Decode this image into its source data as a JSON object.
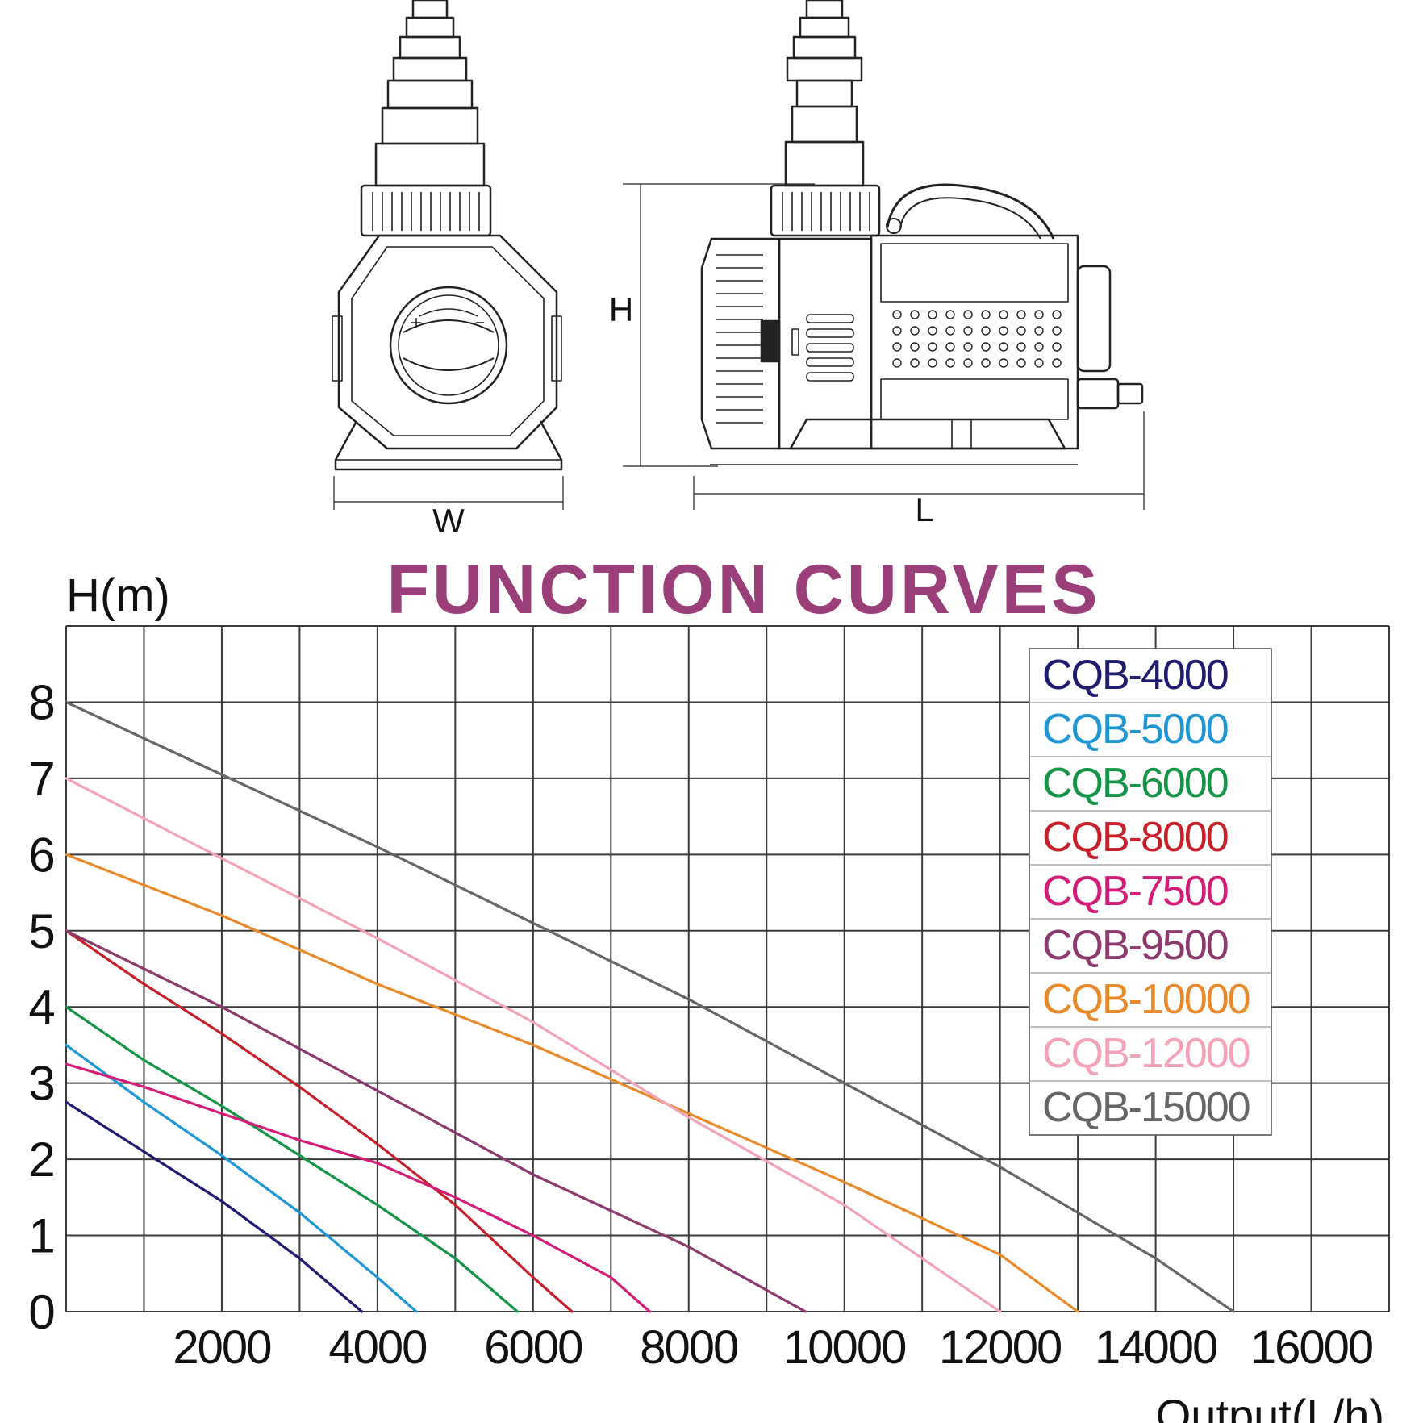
{
  "drawing": {
    "front_view_label": "W",
    "side_view_label": "L",
    "height_label": "H"
  },
  "chart_data": {
    "type": "line",
    "title": "FUNCTION CURVES",
    "title_color": "#9b3f7a",
    "xlabel": "Output(L/h)",
    "ylabel": "H(m)",
    "xlim": [
      0,
      17000
    ],
    "ylim": [
      0,
      9
    ],
    "grid": true,
    "legend_position": "top-right",
    "x_ticks": [
      2000,
      4000,
      6000,
      8000,
      10000,
      12000,
      14000,
      16000
    ],
    "x_tick_labels": [
      "2000",
      "4000",
      "6000",
      "8000",
      "10000",
      "12000",
      "14000",
      "16000"
    ],
    "y_ticks": [
      0,
      1,
      2,
      3,
      4,
      5,
      6,
      7,
      8
    ],
    "y_tick_labels": [
      "0",
      "1",
      "2",
      "3",
      "4",
      "5",
      "6",
      "7",
      "8"
    ],
    "series": [
      {
        "name": "CQB-4000",
        "color": "#1f1b6e",
        "x": [
          0,
          1000,
          2000,
          3000,
          3800
        ],
        "y": [
          2.75,
          2.1,
          1.45,
          0.7,
          0
        ]
      },
      {
        "name": "CQB-5000",
        "color": "#1f97d4",
        "x": [
          0,
          1000,
          2000,
          3000,
          4000,
          4500
        ],
        "y": [
          3.5,
          2.75,
          2.05,
          1.3,
          0.45,
          0
        ]
      },
      {
        "name": "CQB-6000",
        "color": "#149447",
        "x": [
          0,
          1000,
          2000,
          3000,
          4000,
          5000,
          5800
        ],
        "y": [
          4.0,
          3.3,
          2.7,
          2.05,
          1.4,
          0.7,
          0
        ]
      },
      {
        "name": "CQB-8000",
        "color": "#c8202b",
        "x": [
          0,
          1000,
          2000,
          3000,
          4000,
          5000,
          6000,
          6500
        ],
        "y": [
          5.0,
          4.3,
          3.65,
          2.95,
          2.2,
          1.4,
          0.45,
          0
        ]
      },
      {
        "name": "CQB-7500",
        "color": "#d31c78",
        "x": [
          0,
          1000,
          2000,
          3000,
          4000,
          5000,
          6000,
          7000,
          7500
        ],
        "y": [
          3.25,
          2.95,
          2.6,
          2.25,
          1.95,
          1.5,
          1.0,
          0.45,
          0
        ]
      },
      {
        "name": "CQB-9500",
        "color": "#8c3a6e",
        "x": [
          0,
          2000,
          4000,
          6000,
          8000,
          9500
        ],
        "y": [
          5.0,
          4.0,
          2.9,
          1.8,
          0.85,
          0
        ]
      },
      {
        "name": "CQB-10000",
        "color": "#e8892a",
        "x": [
          0,
          2000,
          4000,
          6000,
          8000,
          10000,
          12000,
          13000
        ],
        "y": [
          6.0,
          5.2,
          4.3,
          3.5,
          2.6,
          1.7,
          0.75,
          0
        ]
      },
      {
        "name": "CQB-12000",
        "color": "#f2a3b7",
        "x": [
          0,
          2000,
          4000,
          6000,
          8000,
          10000,
          12000
        ],
        "y": [
          7.0,
          5.95,
          4.9,
          3.8,
          2.55,
          1.4,
          0
        ]
      },
      {
        "name": "CQB-15000",
        "color": "#666666",
        "x": [
          0,
          2000,
          4000,
          6000,
          8000,
          10000,
          12000,
          14000,
          15000
        ],
        "y": [
          8.0,
          7.05,
          6.1,
          5.1,
          4.1,
          3.0,
          1.9,
          0.7,
          0
        ]
      }
    ]
  }
}
